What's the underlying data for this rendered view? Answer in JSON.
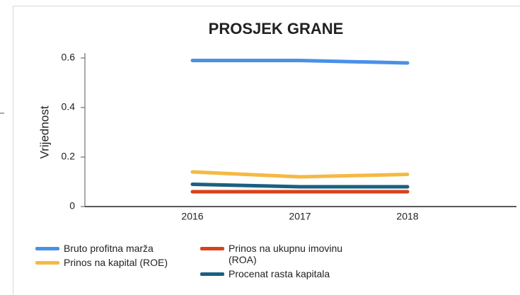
{
  "chart_data": {
    "type": "line",
    "title": "PROSJEK GRANE",
    "y_label": "Vrijednost",
    "categories": [
      "2016",
      "2017",
      "2018"
    ],
    "series": [
      {
        "name": "Bruto profitna marža",
        "color": "#4a90e8",
        "values": [
          0.59,
          0.59,
          0.58
        ]
      },
      {
        "name": "Prinos na kapital (ROE)",
        "color": "#f5b942",
        "values": [
          0.14,
          0.12,
          0.13
        ]
      },
      {
        "name": "Prinos na ukupnu imovinu (ROA)",
        "color": "#d9421a",
        "values": [
          0.06,
          0.06,
          0.06
        ]
      },
      {
        "name": "Procenat rasta kapitala",
        "color": "#1a6080",
        "values": [
          0.09,
          0.08,
          0.08
        ]
      }
    ],
    "ylim": [
      0,
      0.6
    ],
    "yticks": [
      0,
      0.2,
      0.4,
      0.6
    ],
    "grid": false
  }
}
